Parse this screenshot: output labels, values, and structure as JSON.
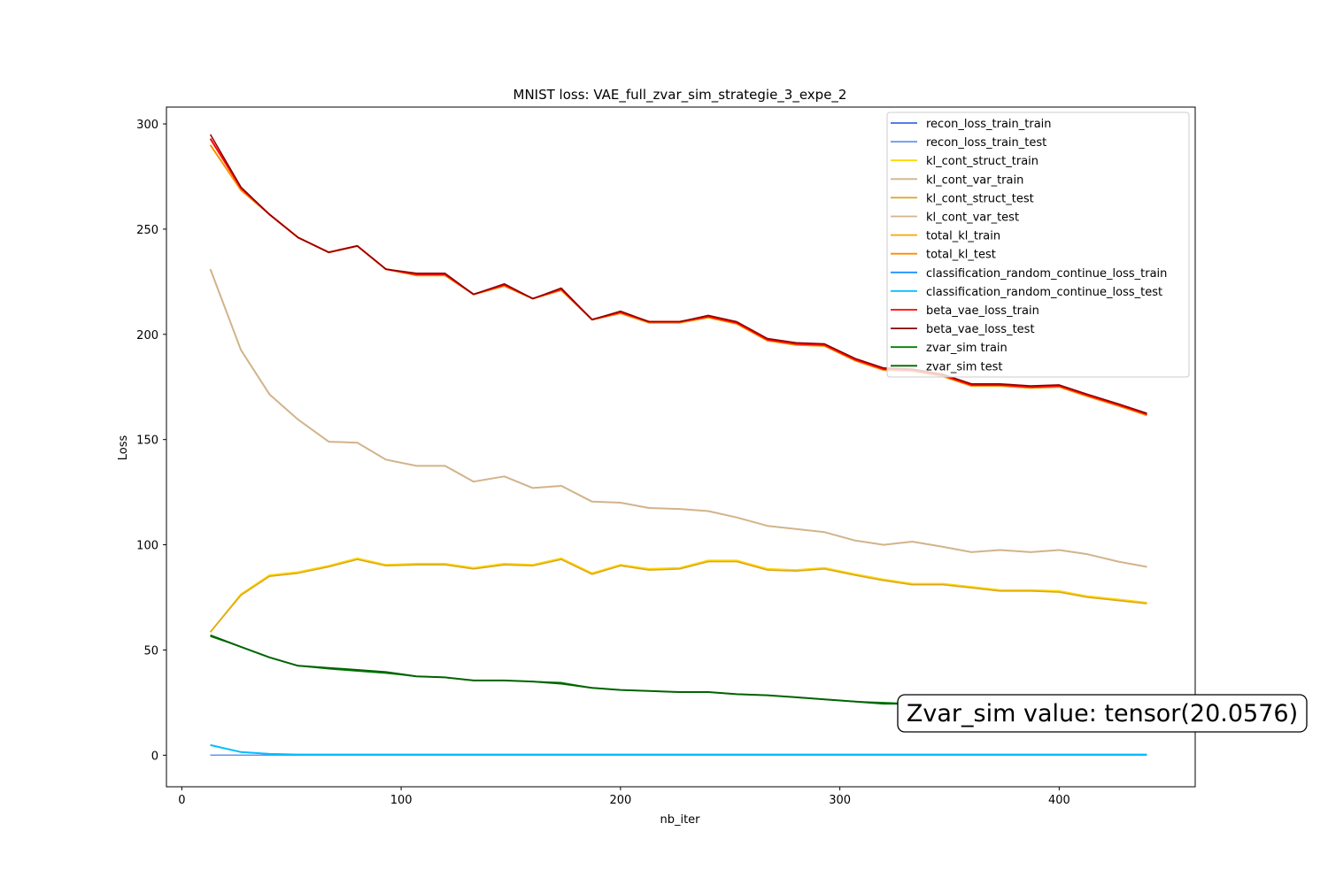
{
  "chart_data": {
    "type": "line",
    "title": "MNIST loss: VAE_full_zvar_sim_strategie_3_expe_2",
    "xlabel": "nb_iter",
    "ylabel": "Loss",
    "xlim": [
      -7,
      462
    ],
    "ylim": [
      -15,
      308
    ],
    "xticks": [
      0,
      100,
      200,
      300,
      400
    ],
    "yticks": [
      0,
      50,
      100,
      150,
      200,
      250,
      300
    ],
    "grid": false,
    "legend_position": "upper right",
    "x": [
      13,
      27,
      40,
      53,
      67,
      80,
      93,
      107,
      120,
      133,
      147,
      160,
      173,
      187,
      200,
      213,
      227,
      240,
      253,
      267,
      280,
      293,
      307,
      320,
      333,
      347,
      360,
      373,
      387,
      400,
      413,
      427,
      440
    ],
    "series": [
      {
        "name": "recon_loss_train_train",
        "color": "#4169e1",
        "width": 1.5,
        "values": [
          0,
          0,
          0,
          0,
          0,
          0,
          0,
          0,
          0,
          0,
          0,
          0,
          0,
          0,
          0,
          0,
          0,
          0,
          0,
          0,
          0,
          0,
          0,
          0,
          0,
          0,
          0,
          0,
          0,
          0,
          0,
          0,
          0
        ]
      },
      {
        "name": "recon_loss_train_test",
        "color": "#6495ed",
        "width": 1.5,
        "values": [
          0,
          0,
          0,
          0,
          0,
          0,
          0,
          0,
          0,
          0,
          0,
          0,
          0,
          0,
          0,
          0,
          0,
          0,
          0,
          0,
          0,
          0,
          0,
          0,
          0,
          0,
          0,
          0,
          0,
          0,
          0,
          0,
          0
        ]
      },
      {
        "name": "kl_cont_struct_train",
        "color": "#ffd700",
        "width": 2,
        "values": [
          58.5,
          76.5,
          85.5,
          87,
          90,
          93.5,
          90.5,
          91,
          91,
          89,
          91,
          90.5,
          93.5,
          86.5,
          90.5,
          88.5,
          89,
          92.5,
          92.5,
          88.5,
          88,
          89,
          86,
          83.5,
          81.5,
          81.5,
          80,
          78.5,
          78.5,
          78,
          75.5,
          74,
          72.5
        ]
      },
      {
        "name": "kl_cont_var_train",
        "color": "#d2b48c",
        "width": 2,
        "values": [
          231,
          192.5,
          171.5,
          159.5,
          149,
          148.5,
          140.5,
          137.5,
          137.5,
          130,
          132.5,
          127,
          128,
          120.5,
          120,
          117.5,
          117,
          116,
          113,
          109,
          107.5,
          106,
          102,
          100,
          101.5,
          99,
          96.5,
          97.5,
          96.5,
          97.5,
          95.5,
          92,
          89.5
        ]
      },
      {
        "name": "kl_cont_struct_test",
        "color": "#daa520",
        "width": 1.5,
        "values": [
          58.5,
          76,
          85,
          86.5,
          89.5,
          93,
          90,
          90.5,
          90.5,
          88.5,
          90.5,
          90,
          93,
          86,
          90,
          88,
          88.5,
          92,
          92,
          88,
          87.5,
          88.5,
          85.5,
          83,
          81,
          81,
          79.5,
          78,
          78,
          77.5,
          75,
          73.5,
          72
        ]
      },
      {
        "name": "kl_cont_var_test",
        "color": "#d2b48c",
        "width": 1.5,
        "values": [
          231,
          192.5,
          171.5,
          159.5,
          149,
          148.5,
          140.5,
          137.5,
          137.5,
          130,
          132.5,
          127,
          128,
          120.5,
          120,
          117.5,
          117,
          116,
          113,
          109,
          107.5,
          106,
          102,
          100,
          101.5,
          99,
          96.5,
          97.5,
          96.5,
          97.5,
          95.5,
          92,
          89.5
        ]
      },
      {
        "name": "total_kl_train",
        "color": "#ffa500",
        "width": 2,
        "values": [
          290,
          268.5,
          257,
          246,
          239,
          242,
          231,
          228,
          228,
          219,
          223,
          217,
          221,
          207,
          210,
          205.5,
          205.5,
          208,
          205,
          197,
          195,
          194.5,
          187.5,
          183,
          182.5,
          180,
          175.5,
          175.5,
          174.5,
          175,
          170.5,
          166,
          161.5
        ]
      },
      {
        "name": "total_kl_test",
        "color": "#ff8c00",
        "width": 1.5,
        "values": [
          290,
          268.5,
          257,
          246,
          239,
          242,
          231,
          228,
          228,
          219,
          223,
          217,
          221,
          207,
          210,
          205.5,
          205.5,
          208,
          205,
          197,
          195,
          194.5,
          187.5,
          183,
          182.5,
          180,
          175.5,
          175.5,
          174.5,
          175,
          170.5,
          166,
          161.5
        ]
      },
      {
        "name": "classification_random_continue_loss_train",
        "color": "#1e90ff",
        "width": 1.5,
        "values": [
          4.8,
          1.5,
          0.6,
          0.3,
          0.3,
          0.3,
          0.3,
          0.3,
          0.3,
          0.3,
          0.3,
          0.3,
          0.3,
          0.3,
          0.3,
          0.3,
          0.3,
          0.3,
          0.3,
          0.3,
          0.3,
          0.3,
          0.3,
          0.3,
          0.3,
          0.3,
          0.3,
          0.3,
          0.3,
          0.3,
          0.3,
          0.3,
          0.3
        ]
      },
      {
        "name": "classification_random_continue_loss_test",
        "color": "#00bfff",
        "width": 2,
        "values": [
          4.8,
          1.5,
          0.6,
          0.3,
          0.3,
          0.3,
          0.3,
          0.3,
          0.3,
          0.3,
          0.3,
          0.3,
          0.3,
          0.3,
          0.3,
          0.3,
          0.3,
          0.3,
          0.3,
          0.3,
          0.3,
          0.3,
          0.3,
          0.3,
          0.3,
          0.3,
          0.3,
          0.3,
          0.3,
          0.3,
          0.3,
          0.3,
          0.3
        ]
      },
      {
        "name": "beta_vae_loss_train",
        "color": "#ff0000",
        "width": 2,
        "values": [
          293,
          269.5,
          257,
          246,
          239,
          242,
          231,
          228.5,
          228.5,
          219,
          223.5,
          217,
          221.5,
          207,
          210.5,
          206,
          206,
          208.5,
          205.5,
          197.5,
          195.5,
          195,
          188,
          183.5,
          183,
          180.5,
          176,
          176,
          175,
          175.5,
          171,
          166.5,
          162
        ]
      },
      {
        "name": "beta_vae_loss_test",
        "color": "#8b0000",
        "width": 1.5,
        "values": [
          295,
          270,
          257,
          246,
          239,
          242,
          231,
          229,
          229,
          219,
          224,
          217,
          222,
          207,
          211,
          206,
          206,
          209,
          206,
          198,
          196,
          195.5,
          188.5,
          184,
          183.5,
          181,
          176.5,
          176.5,
          175.5,
          176,
          171.5,
          167,
          162.5
        ]
      },
      {
        "name": "zvar_sim train",
        "color": "#008000",
        "width": 1.5,
        "values": [
          56.5,
          51.5,
          46.5,
          42.5,
          41,
          40,
          39,
          37.5,
          37,
          35.5,
          35.5,
          35,
          34.5,
          32,
          31,
          30.5,
          30,
          30,
          29,
          28.5,
          27.5,
          26.5,
          25.5,
          25,
          24.5,
          24,
          23.5,
          23,
          22.5,
          22,
          21.5,
          21,
          20.5
        ]
      },
      {
        "name": "zvar_sim test",
        "color": "#006400",
        "width": 2,
        "values": [
          57,
          51.5,
          46.5,
          42.5,
          41.5,
          40.5,
          39.5,
          37.5,
          37,
          35.5,
          35.5,
          35,
          34,
          32,
          31,
          30.5,
          30,
          30,
          29,
          28.5,
          27.5,
          26.5,
          25.5,
          24.5,
          24.5,
          24,
          23.5,
          23,
          22.5,
          22,
          21.5,
          21,
          20.5
        ]
      }
    ],
    "annotation": {
      "text": "Zvar_sim value: tensor(20.0576)"
    }
  }
}
